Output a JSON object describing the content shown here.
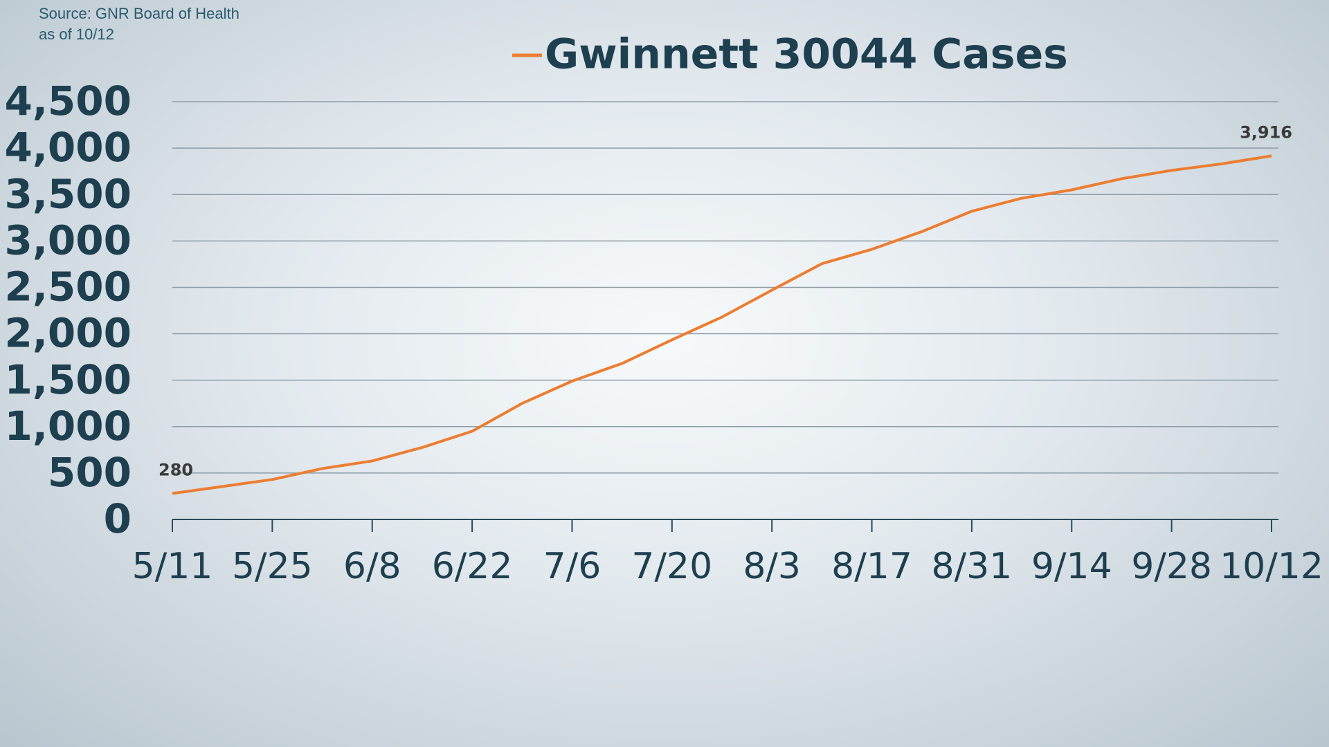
{
  "chart_data": {
    "type": "line",
    "source": [
      "Source: GNR Board of Health",
      "as of 10/12"
    ],
    "categories": [
      "5/11",
      null,
      "5/25",
      null,
      "6/8",
      null,
      "6/22",
      null,
      "7/6",
      null,
      "7/20",
      null,
      "8/3",
      null,
      "8/17",
      null,
      "8/31",
      null,
      "9/14",
      null,
      "9/28",
      null,
      "10/12"
    ],
    "series": [
      {
        "name": "Gwinnett 30044 Cases",
        "color": "#ed7d31",
        "values": [
          280,
          355,
          430,
          548,
          630,
          775,
          950,
          1250,
          1490,
          1680,
          1935,
          2180,
          2470,
          2755,
          2910,
          3100,
          3320,
          3460,
          3550,
          3670,
          3760,
          3830,
          3916
        ],
        "value_labels": [
          "280",
          null,
          null,
          null,
          null,
          null,
          null,
          null,
          null,
          null,
          null,
          null,
          null,
          null,
          null,
          null,
          null,
          null,
          null,
          null,
          null,
          null,
          "3,916"
        ]
      }
    ],
    "ylim": [
      0,
      4500
    ],
    "yticks": [
      0,
      500,
      {
        "value": 1000,
        "label": "1,000"
      },
      {
        "value": 1500,
        "label": "1,500"
      },
      {
        "value": 2000,
        "label": "2,000"
      },
      {
        "value": 2500,
        "label": "2,500"
      },
      {
        "value": 3000,
        "label": "3,000"
      },
      {
        "value": 3500,
        "label": "3,500"
      },
      {
        "value": 4000,
        "label": "4,000"
      },
      {
        "value": 4500,
        "label": "4,500"
      }
    ],
    "grid": true
  }
}
